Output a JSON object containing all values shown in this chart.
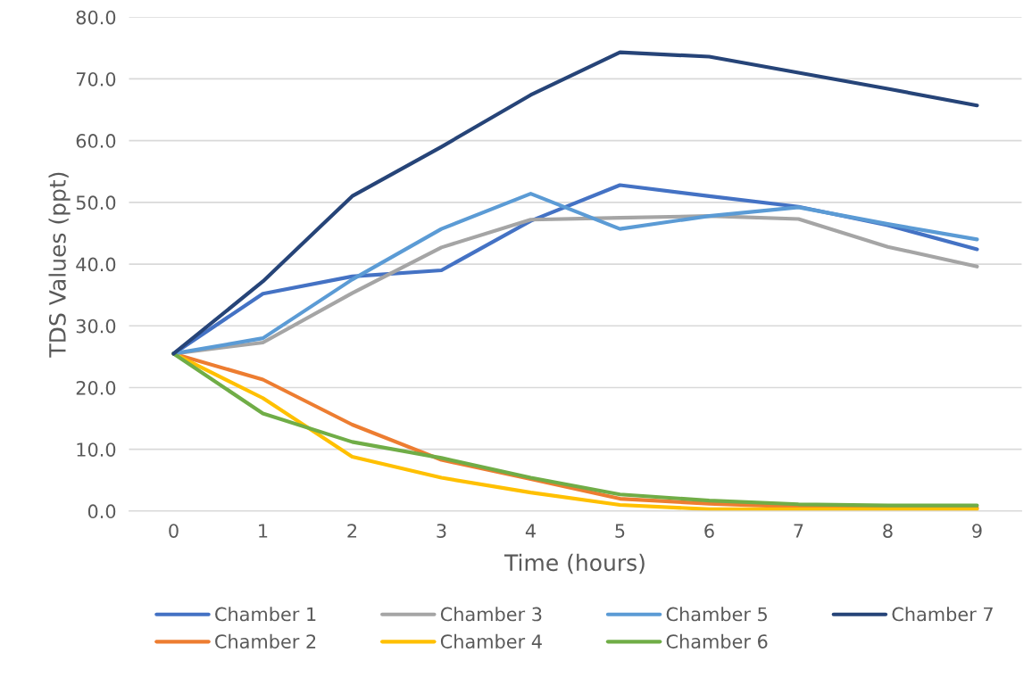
{
  "chart_data": {
    "type": "line",
    "xlabel": "Time (hours)",
    "ylabel": "TDS Values (ppt)",
    "categories": [
      "0",
      "1",
      "2",
      "3",
      "4",
      "5",
      "6",
      "7",
      "8",
      "9"
    ],
    "ylim": [
      0,
      80
    ],
    "yticks": [
      {
        "value": 0,
        "label": "0.0"
      },
      {
        "value": 10,
        "label": "10.0"
      },
      {
        "value": 20,
        "label": "20.0"
      },
      {
        "value": 30,
        "label": "30.0"
      },
      {
        "value": 40,
        "label": "40.0"
      },
      {
        "value": 50,
        "label": "50.0"
      },
      {
        "value": 60,
        "label": "60.0"
      },
      {
        "value": 70,
        "label": "70.0"
      },
      {
        "value": 80,
        "label": "80.0"
      }
    ],
    "grid": "y",
    "legend": "bottom",
    "marker": "none",
    "line_style": "solid",
    "series": [
      {
        "name": "Chamber 1",
        "color": "#4472c4",
        "values": [
          25.5,
          35.2,
          38.0,
          39.0,
          47.0,
          52.8,
          51.0,
          49.3,
          46.3,
          42.4
        ]
      },
      {
        "name": "Chamber 2",
        "color": "#ed7d31",
        "values": [
          25.5,
          21.3,
          14.0,
          8.3,
          5.2,
          2.0,
          1.2,
          0.7,
          0.5,
          0.5
        ]
      },
      {
        "name": "Chamber 3",
        "color": "#a5a5a5",
        "values": [
          25.5,
          27.3,
          35.3,
          42.7,
          47.2,
          47.5,
          47.8,
          47.3,
          42.8,
          39.6
        ]
      },
      {
        "name": "Chamber 4",
        "color": "#ffc000",
        "values": [
          25.5,
          18.3,
          8.8,
          5.4,
          3.0,
          1.0,
          0.3,
          0.3,
          0.3,
          0.3
        ]
      },
      {
        "name": "Chamber 5",
        "color": "#5b9bd5",
        "values": [
          25.5,
          28.0,
          37.5,
          45.7,
          51.4,
          45.7,
          47.8,
          49.2,
          46.5,
          44.0
        ]
      },
      {
        "name": "Chamber 6",
        "color": "#70ad47",
        "values": [
          25.5,
          15.8,
          11.2,
          8.6,
          5.4,
          2.7,
          1.7,
          1.1,
          0.9,
          0.9
        ]
      },
      {
        "name": "Chamber 7",
        "color": "#264478",
        "values": [
          25.5,
          37.2,
          51.0,
          59.0,
          67.4,
          74.3,
          73.6,
          71.0,
          68.4,
          65.7
        ]
      }
    ]
  }
}
